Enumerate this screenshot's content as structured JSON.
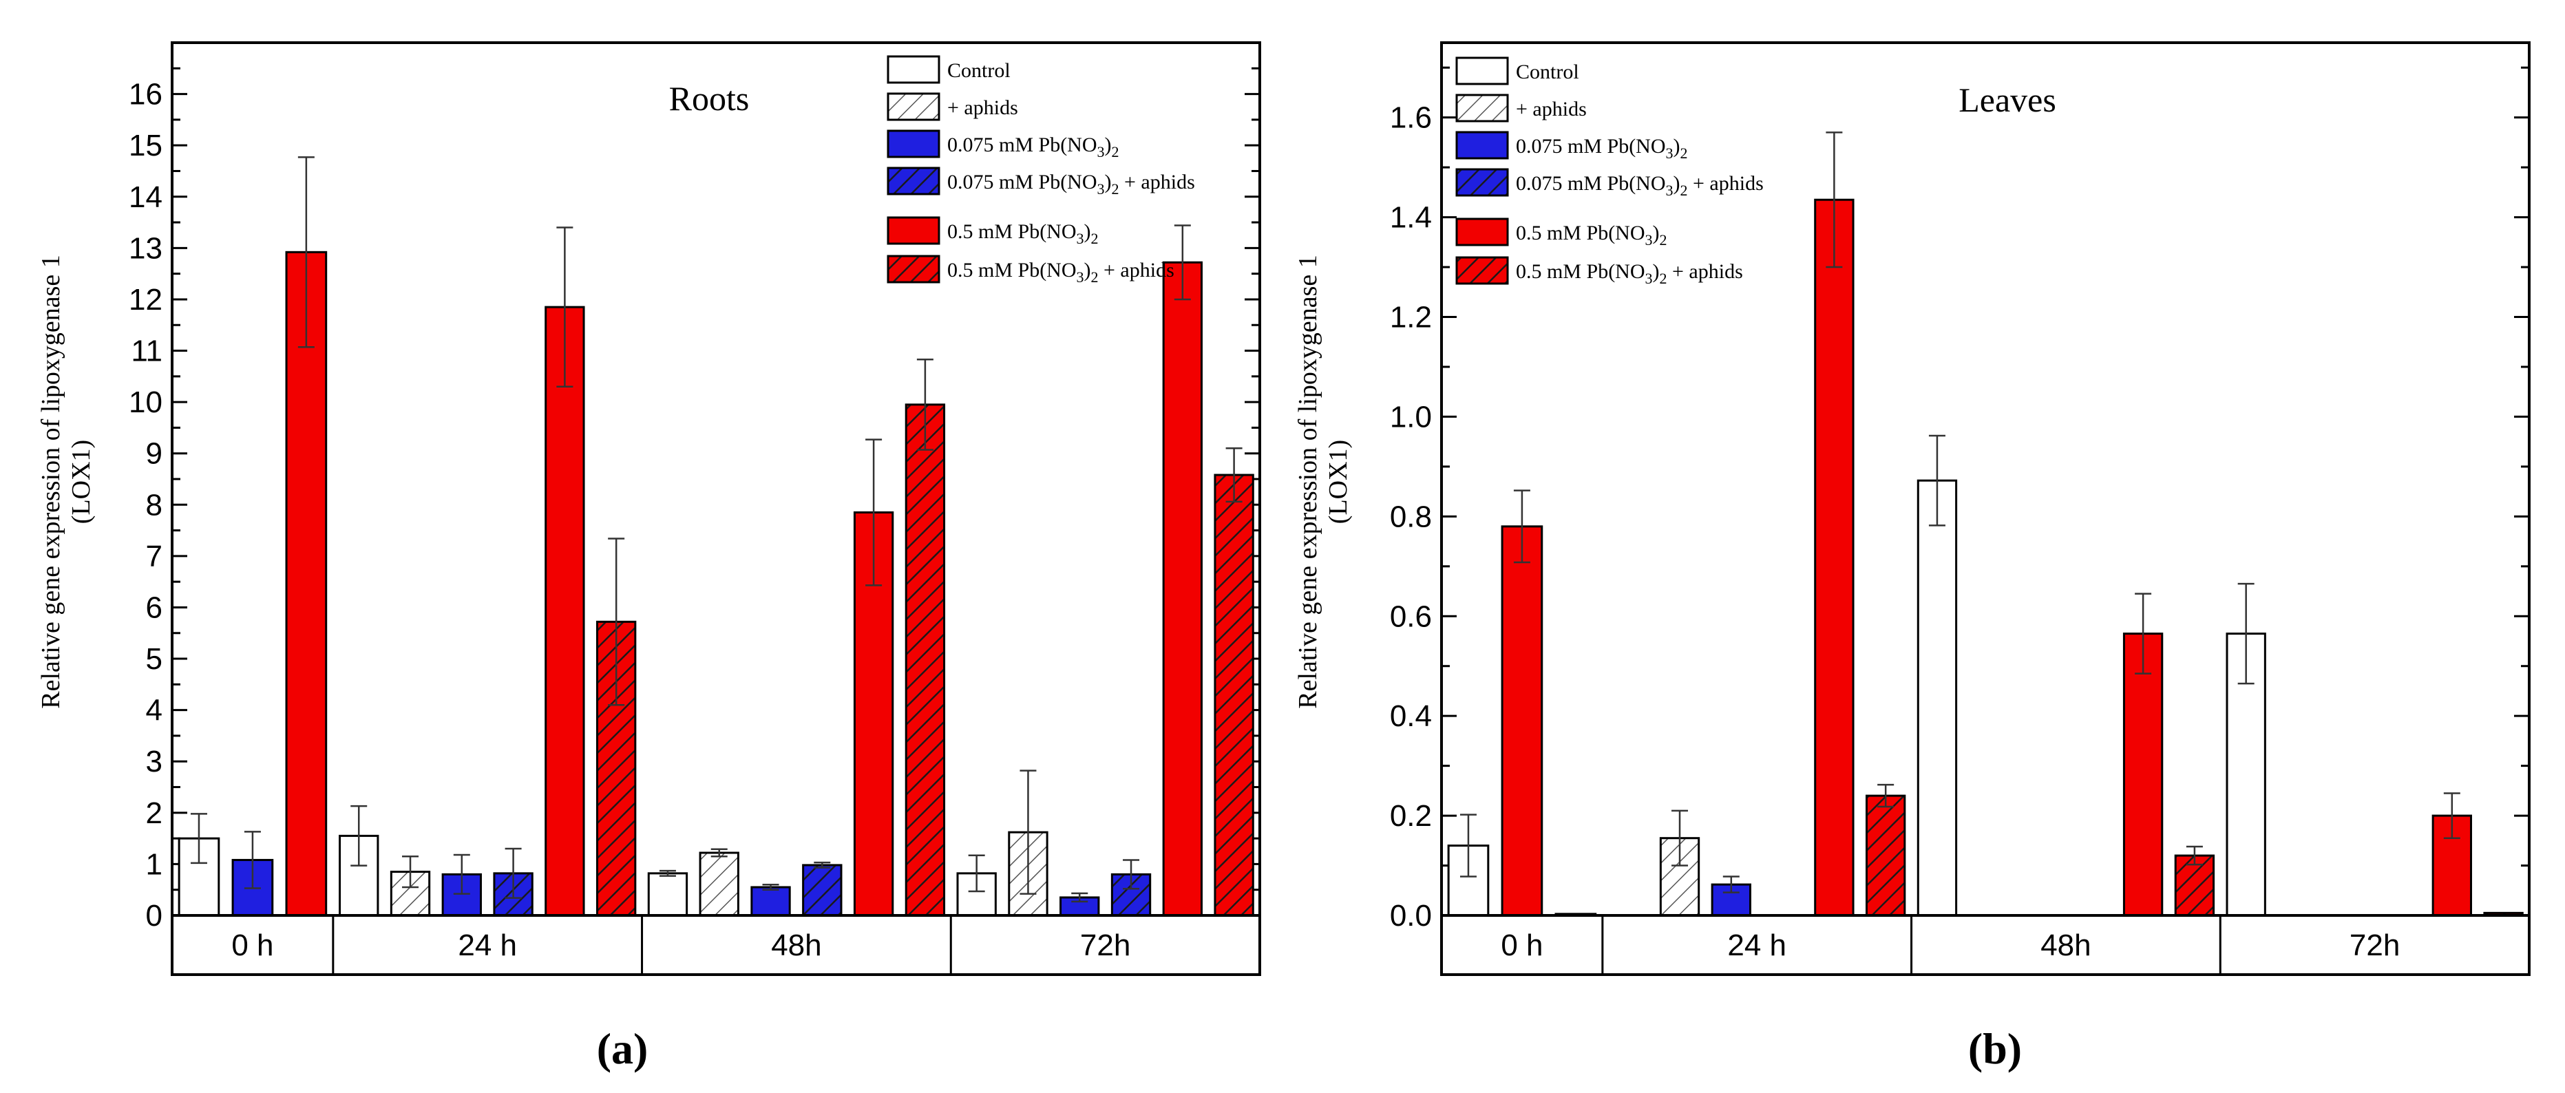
{
  "figure": {
    "panel_a_label": "(a)",
    "panel_b_label": "(b)"
  },
  "legend": [
    {
      "label_main": "Control",
      "sub": "",
      "tail": "",
      "fill": "#ffffff",
      "hatch": false
    },
    {
      "label_main": "+ aphids",
      "sub": "",
      "tail": "",
      "fill": "#ffffff",
      "hatch": true
    },
    {
      "label_main": "0.075 mM Pb(NO",
      "sub": "3",
      "tail": ")2",
      "fill": "#1f1fe0",
      "hatch": false
    },
    {
      "label_main": "0.075 mM Pb(NO",
      "sub": "3",
      "tail": ")2 +  aphids",
      "fill": "#1f1fe0",
      "hatch": true
    },
    {
      "label_main": "0.5 mM Pb(NO",
      "sub": "3",
      "tail": ")2",
      "fill": "#f20000",
      "hatch": false
    },
    {
      "label_main": "0.5 mM Pb(NO",
      "sub": "3",
      "tail": ")2 + aphids",
      "fill": "#f20000",
      "hatch": true
    }
  ],
  "chart_data": [
    {
      "type": "bar",
      "title": "Roots",
      "ylabel_line1": "Relative gene expression of lipoxygenase 1",
      "ylabel_line2": "(LOX1)",
      "ylim": [
        0,
        17
      ],
      "yticks": [
        "0",
        "1",
        "2",
        "3",
        "4",
        "5",
        "6",
        "7",
        "8",
        "9",
        "10",
        "11",
        "12",
        "13",
        "14",
        "15",
        "16"
      ],
      "categories": [
        "0 h",
        "24 h",
        "48h",
        "72h"
      ],
      "bars": [
        {
          "group": "0 h",
          "series": 0,
          "value": 1.5,
          "error": 0.48
        },
        {
          "group": "0 h",
          "series": 2,
          "value": 1.08,
          "error": 0.55
        },
        {
          "group": "0 h",
          "series": 4,
          "value": 12.92,
          "error": 1.85
        },
        {
          "group": "24 h",
          "series": 0,
          "value": 1.55,
          "error": 0.58
        },
        {
          "group": "24 h",
          "series": 1,
          "value": 0.85,
          "error": 0.3
        },
        {
          "group": "24 h",
          "series": 2,
          "value": 0.8,
          "error": 0.38
        },
        {
          "group": "24 h",
          "series": 3,
          "value": 0.82,
          "error": 0.48
        },
        {
          "group": "24 h",
          "series": 4,
          "value": 11.85,
          "error": 1.55
        },
        {
          "group": "24 h",
          "series": 5,
          "value": 5.72,
          "error": 1.62
        },
        {
          "group": "48h",
          "series": 0,
          "value": 0.82,
          "error": 0.05
        },
        {
          "group": "48h",
          "series": 1,
          "value": 1.22,
          "error": 0.07
        },
        {
          "group": "48h",
          "series": 2,
          "value": 0.55,
          "error": 0.05
        },
        {
          "group": "48h",
          "series": 3,
          "value": 0.98,
          "error": 0.05
        },
        {
          "group": "48h",
          "series": 4,
          "value": 7.85,
          "error": 1.42
        },
        {
          "group": "48h",
          "series": 5,
          "value": 9.95,
          "error": 0.88
        },
        {
          "group": "72h",
          "series": 0,
          "value": 0.82,
          "error": 0.35
        },
        {
          "group": "72h",
          "series": 1,
          "value": 1.62,
          "error": 1.2
        },
        {
          "group": "72h",
          "series": 2,
          "value": 0.35,
          "error": 0.08
        },
        {
          "group": "72h",
          "series": 3,
          "value": 0.8,
          "error": 0.28
        },
        {
          "group": "72h",
          "series": 4,
          "value": 12.72,
          "error": 0.72
        },
        {
          "group": "72h",
          "series": 5,
          "value": 8.58,
          "error": 0.52
        }
      ]
    },
    {
      "type": "bar",
      "title": "Leaves",
      "ylabel_line1": "Relative gene expression of lipoxygenase 1",
      "ylabel_line2": "(LOX1)",
      "ylim": [
        0,
        1.75
      ],
      "yticks": [
        "0.0",
        "0.2",
        "0.4",
        "0.6",
        "0.8",
        "1.0",
        "1.2",
        "1.4",
        "1.6"
      ],
      "categories": [
        "0 h",
        "24 h",
        "48h",
        "72h"
      ],
      "bars": [
        {
          "group": "0 h",
          "series": 0,
          "value": 0.14,
          "error": 0.062
        },
        {
          "group": "0 h",
          "series": 4,
          "value": 0.78,
          "error": 0.072
        },
        {
          "group": "0 h",
          "series": 5,
          "value": 0.003,
          "error": 0
        },
        {
          "group": "24 h",
          "series": 1,
          "value": 0.155,
          "error": 0.055
        },
        {
          "group": "24 h",
          "series": 2,
          "value": 0.062,
          "error": 0.016
        },
        {
          "group": "24 h",
          "series": 4,
          "value": 1.435,
          "error": 0.135
        },
        {
          "group": "24 h",
          "series": 5,
          "value": 0.24,
          "error": 0.022
        },
        {
          "group": "48h",
          "series": 0,
          "value": 0.872,
          "error": 0.09
        },
        {
          "group": "48h",
          "series": 4,
          "value": 0.565,
          "error": 0.08
        },
        {
          "group": "48h",
          "series": 5,
          "value": 0.12,
          "error": 0.018
        },
        {
          "group": "72h",
          "series": 0,
          "value": 0.565,
          "error": 0.1
        },
        {
          "group": "72h",
          "series": 4,
          "value": 0.2,
          "error": 0.045
        },
        {
          "group": "72h",
          "series": 5,
          "value": 0.005,
          "error": 0
        }
      ]
    }
  ]
}
